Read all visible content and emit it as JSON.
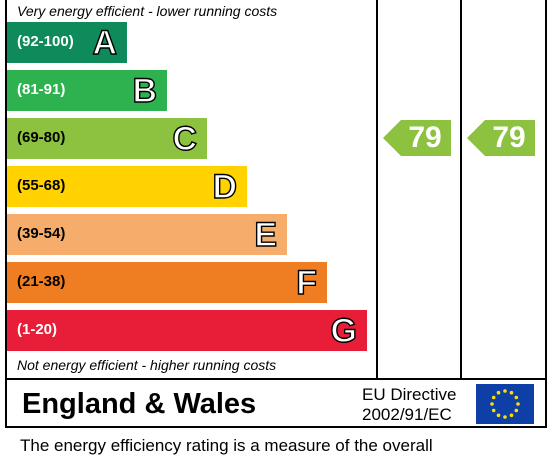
{
  "chart_data": {
    "type": "table",
    "top_note": "Very energy efficient - lower running costs",
    "bottom_note": "Not energy efficient - higher running costs",
    "bands": [
      {
        "range": "(92-100)",
        "letter": "A",
        "color": "#0f8a5b",
        "range_color": "#ffffff"
      },
      {
        "range": "(81-91)",
        "letter": "B",
        "color": "#2db24f",
        "range_color": "#ffffff"
      },
      {
        "range": "(69-80)",
        "letter": "C",
        "color": "#8cc23f",
        "range_color": "#000000"
      },
      {
        "range": "(55-68)",
        "letter": "D",
        "color": "#ffd200",
        "range_color": "#000000"
      },
      {
        "range": "(39-54)",
        "letter": "E",
        "color": "#f6ad6b",
        "range_color": "#000000"
      },
      {
        "range": "(21-38)",
        "letter": "F",
        "color": "#ef7d22",
        "range_color": "#000000"
      },
      {
        "range": "(1-20)",
        "letter": "G",
        "color": "#e81d37",
        "range_color": "#ffffff"
      }
    ],
    "ratings": [
      {
        "value": 79,
        "band": "C",
        "color": "#8cc23f"
      },
      {
        "value": 79,
        "band": "C",
        "color": "#8cc23f"
      }
    ]
  },
  "region": "England & Wales",
  "directive": [
    "EU Directive",
    "2002/91/EC"
  ],
  "footer": "The energy efficiency rating is a measure of the overall"
}
